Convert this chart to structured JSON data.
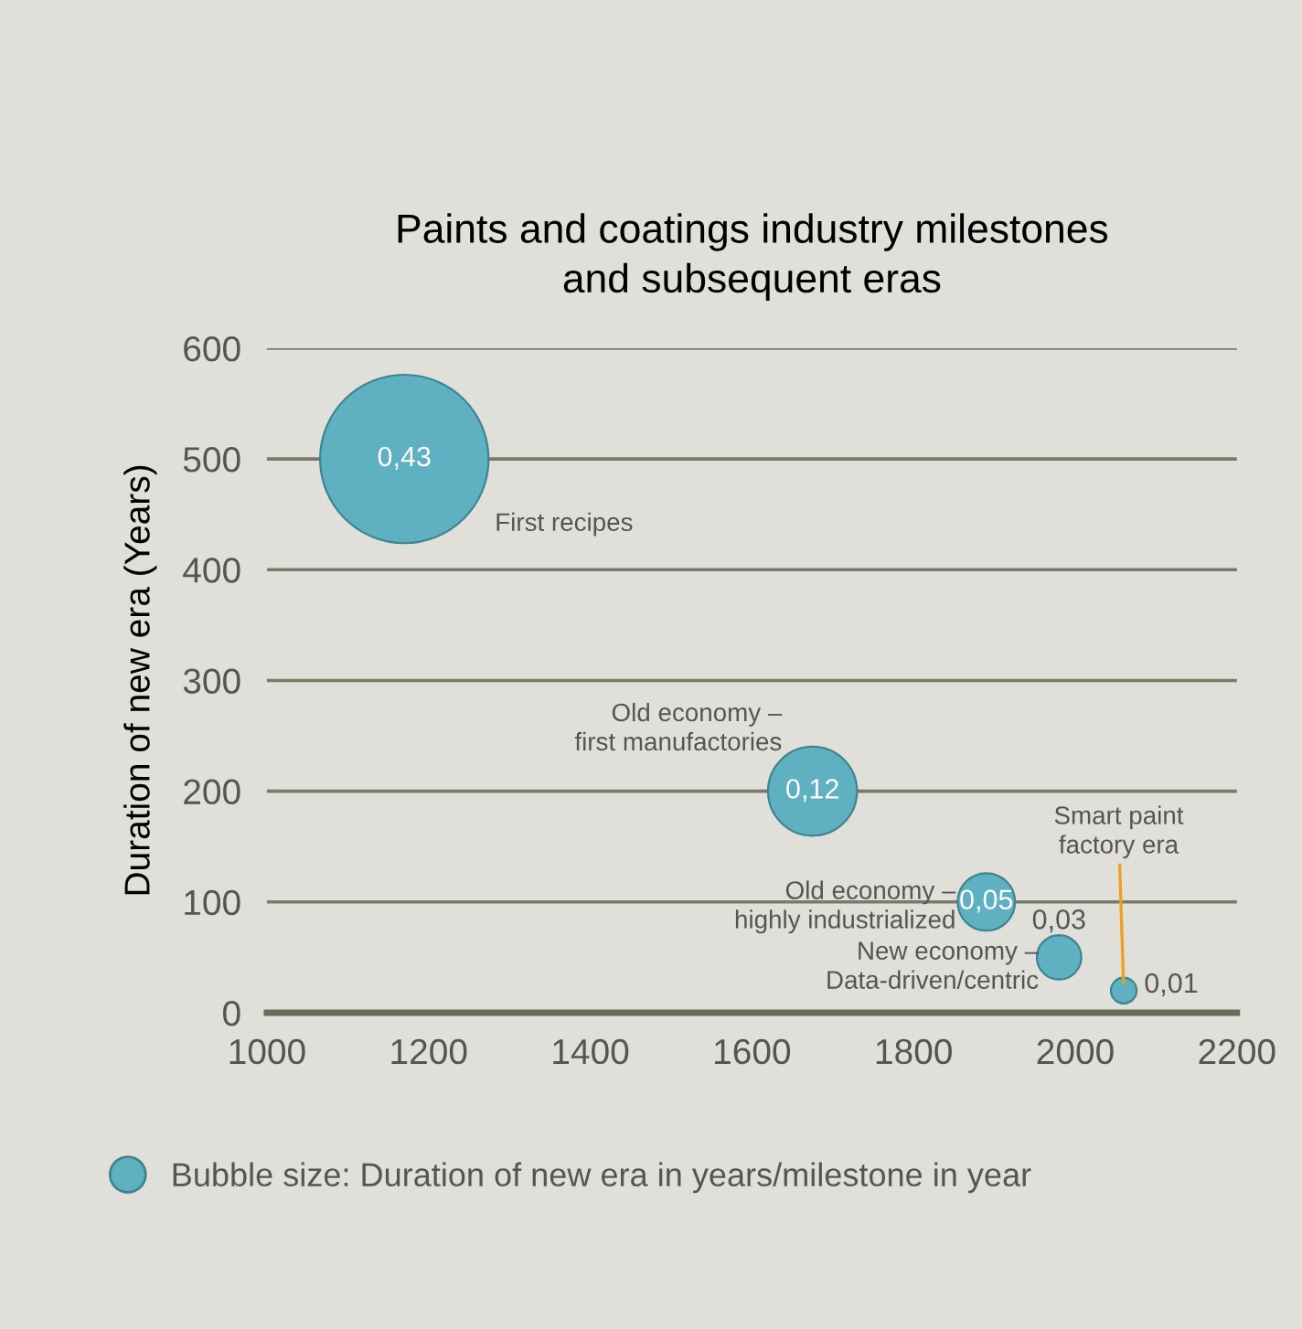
{
  "chart_data": {
    "type": "bubble",
    "title": "Paints and coatings industry milestones\nand subsequent eras",
    "ylabel": "Duration of new era (Years)",
    "x": [
      1170,
      1675,
      1890,
      1980,
      2060
    ],
    "series": [
      {
        "name": "Bubble size: Duration of new era in years/milestone in year",
        "color": "#5fb0c0",
        "values": [
          500,
          200,
          100,
          50,
          20
        ],
        "sizes": [
          0.43,
          0.12,
          0.05,
          0.03,
          0.01
        ],
        "value_labels": [
          "0,43",
          "0,12",
          "0,05",
          "0,03",
          "0,01"
        ]
      }
    ],
    "annotations": [
      "First recipes",
      {
        "text": "Old economy –\nfirst manufactories",
        "x": 1675,
        "y": 200
      },
      {
        "text": "Old economy –\nhighly industrialized",
        "x": 1890,
        "y": 100
      },
      {
        "text": "New economy –\nData-driven/centric",
        "x": 1980,
        "y": 50
      },
      {
        "text": "Smart paint\nfactory era",
        "x": 2060,
        "y": 20
      }
    ],
    "xlim": [
      1000,
      2200
    ],
    "xticks": [
      1000,
      1200,
      1400,
      1600,
      1800,
      2000,
      2200
    ],
    "ylim": [
      0,
      600
    ],
    "yticks": [
      0,
      100,
      200,
      300,
      400,
      500,
      600
    ],
    "grid": "y",
    "legend": "bottom"
  }
}
